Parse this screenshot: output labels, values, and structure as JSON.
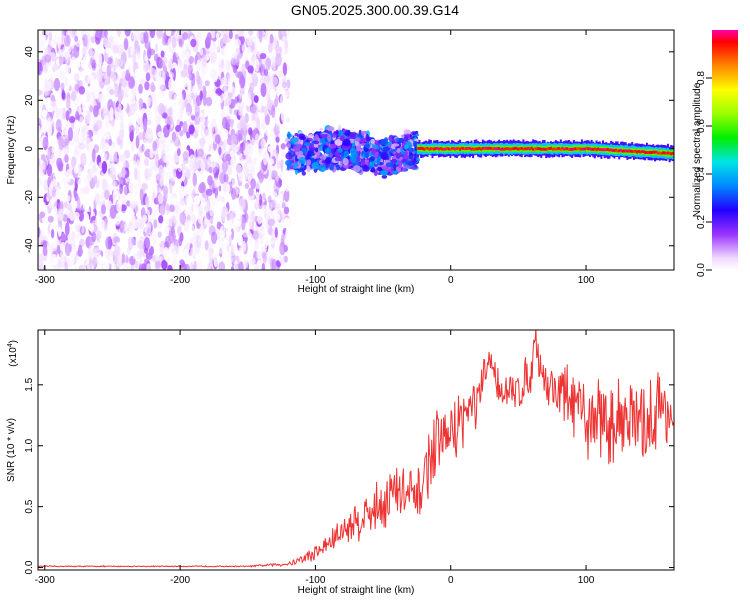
{
  "title": "GN05.2025.300.00.39.G14",
  "chart_data": [
    {
      "type": "heatmap",
      "xlabel": "Height of straight line (km)",
      "ylabel": "Frequency (Hz)",
      "xlim": [
        -305,
        165
      ],
      "ylim": [
        -50,
        49
      ],
      "x_ticks": [
        -300,
        -200,
        -100,
        0,
        100
      ],
      "y_ticks": [
        -40,
        -20,
        0,
        20,
        40
      ],
      "colorbar": {
        "label": "Normalized spectral amplitude",
        "range": [
          0,
          1
        ],
        "ticks": [
          0.0,
          0.2,
          0.4,
          0.6,
          0.8
        ],
        "tick_labels": [
          "0.0",
          "0.2",
          "0.4",
          "0.6",
          "0.8"
        ]
      },
      "regions": [
        {
          "x": [
            -305,
            -120
          ],
          "freq_range": [
            -50,
            49
          ],
          "amplitude": [
            0.0,
            0.15
          ],
          "description": "broadband noise"
        },
        {
          "x": [
            -120,
            -25
          ],
          "freq_range": [
            -10,
            8
          ],
          "amplitude": [
            0.05,
            0.4
          ]
        },
        {
          "x": [
            -25,
            165
          ],
          "center_freq": [
            0,
            0,
            -2
          ],
          "center_x": [
            -25,
            100,
            165
          ],
          "amplitude": [
            0.9,
            1.0
          ]
        }
      ]
    },
    {
      "type": "line",
      "xlabel": "Height of straight line (km)",
      "ylabel": "SNR (10 * v/v)",
      "y_multiplier_label": "(x10",
      "y_multiplier_exp": "4",
      "xlim": [
        -305,
        165
      ],
      "ylim": [
        -0.02,
        1.95
      ],
      "x_ticks": [
        -300,
        -200,
        -100,
        0,
        100
      ],
      "y_ticks": [
        0.0,
        0.5,
        1.0,
        1.5
      ],
      "y_tick_labels": [
        "0.0",
        "0.5",
        "1.0",
        "1.5"
      ],
      "color": "#ee3333",
      "series": [
        {
          "x": [
            -305,
            -250,
            -200,
            -150,
            -120,
            -110,
            -100,
            -90,
            -80,
            -70,
            -60,
            -50,
            -40,
            -30,
            -25,
            -20,
            -15,
            -10,
            0,
            10,
            20,
            25,
            30,
            32,
            40,
            50,
            60,
            62,
            70,
            80,
            90,
            100,
            110,
            120,
            130,
            140,
            150,
            160,
            165
          ],
          "y": [
            0.01,
            0.01,
            0.01,
            0.01,
            0.03,
            0.07,
            0.12,
            0.2,
            0.3,
            0.38,
            0.45,
            0.55,
            0.62,
            0.58,
            0.5,
            0.75,
            0.9,
            1.0,
            1.1,
            1.25,
            1.35,
            1.55,
            1.72,
            1.6,
            1.4,
            1.45,
            1.62,
            1.9,
            1.5,
            1.45,
            1.35,
            1.2,
            1.25,
            1.15,
            1.3,
            1.1,
            1.25,
            1.35,
            1.1
          ],
          "noise_amplitude": [
            0.005,
            0.005,
            0.005,
            0.005,
            0.02,
            0.05,
            0.08,
            0.12,
            0.15,
            0.2,
            0.22,
            0.28,
            0.32,
            0.3,
            0.3,
            0.3,
            0.3,
            0.32,
            0.3,
            0.28,
            0.25,
            0.2,
            0.15,
            0.15,
            0.2,
            0.22,
            0.2,
            0.15,
            0.25,
            0.3,
            0.35,
            0.35,
            0.38,
            0.4,
            0.4,
            0.42,
            0.42,
            0.45,
            0.45
          ]
        }
      ]
    }
  ]
}
